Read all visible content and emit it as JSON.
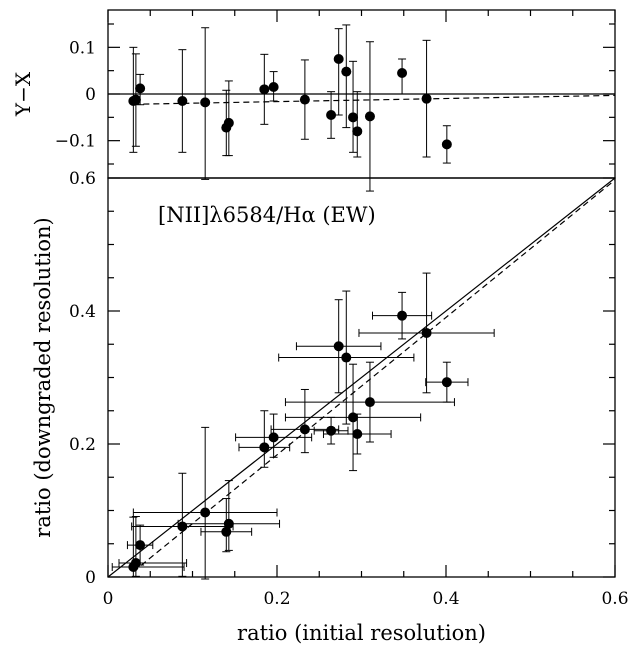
{
  "chart_data": [
    {
      "type": "scatter",
      "panel": "top",
      "ylabel": "Y−X",
      "xlim": [
        0,
        0.6
      ],
      "ylim": [
        -0.18,
        0.18
      ],
      "yticks": [
        "0.1",
        "0",
        "−0.1"
      ],
      "reference_line": {
        "type": "horizontal",
        "y": 0,
        "style": "solid"
      },
      "fit_line": {
        "style": "dashed",
        "points": [
          [
            0.03,
            -0.022
          ],
          [
            0.6,
            -0.003
          ]
        ]
      },
      "points": [
        {
          "x": 0.03,
          "y": -0.015,
          "y_err": [
            0.11,
            0.115
          ]
        },
        {
          "x": 0.033,
          "y": -0.012,
          "y_err": [
            0.1,
            0.098
          ]
        },
        {
          "x": 0.038,
          "y": 0.012,
          "y_err": [
            0.035,
            0.03
          ]
        },
        {
          "x": 0.088,
          "y": -0.015,
          "y_err": [
            0.11,
            0.11
          ]
        },
        {
          "x": 0.115,
          "y": -0.018,
          "y_err": [
            0.165,
            0.16
          ]
        },
        {
          "x": 0.14,
          "y": -0.072,
          "y_err": [
            0.06,
            0.08
          ]
        },
        {
          "x": 0.143,
          "y": -0.062,
          "y_err": [
            0.07,
            0.09
          ]
        },
        {
          "x": 0.185,
          "y": 0.01,
          "y_err": [
            0.075,
            0.075
          ]
        },
        {
          "x": 0.196,
          "y": 0.015,
          "y_err": [
            0.03,
            0.033
          ]
        },
        {
          "x": 0.233,
          "y": -0.012,
          "y_err": [
            0.085,
            0.085
          ]
        },
        {
          "x": 0.264,
          "y": -0.045,
          "y_err": [
            0.05,
            0.05
          ]
        },
        {
          "x": 0.273,
          "y": 0.075,
          "y_err": [
            0.12,
            0.065
          ]
        },
        {
          "x": 0.282,
          "y": 0.048,
          "y_err": [
            0.12,
            0.1
          ]
        },
        {
          "x": 0.29,
          "y": -0.05,
          "y_err": [
            0.075,
            0.12
          ]
        },
        {
          "x": 0.295,
          "y": -0.08,
          "y_err": [
            0.055,
            0.085
          ]
        },
        {
          "x": 0.31,
          "y": -0.048,
          "y_err": [
            0.16,
            0.16
          ]
        },
        {
          "x": 0.348,
          "y": 0.045,
          "y_err": [
            0.045,
            0.03
          ]
        },
        {
          "x": 0.377,
          "y": -0.01,
          "y_err": [
            0.125,
            0.125
          ]
        },
        {
          "x": 0.401,
          "y": -0.108,
          "y_err": [
            0.04,
            0.04
          ]
        }
      ]
    },
    {
      "type": "scatter",
      "panel": "bottom",
      "annotation": "[NII]λ6584/Hα (EW)",
      "xlabel": "ratio (initial resolution)",
      "ylabel": "ratio (downgraded resolution)",
      "xlim": [
        0,
        0.6
      ],
      "ylim": [
        0,
        0.6
      ],
      "xticks": [
        "0",
        "0.2",
        "0.4",
        "0.6"
      ],
      "yticks": [
        "0",
        "0.2",
        "0.4",
        "0.6"
      ],
      "reference_line": {
        "type": "one-to-one",
        "style": "solid",
        "points": [
          [
            0,
            0
          ],
          [
            0.6,
            0.6
          ]
        ]
      },
      "fit_line": {
        "style": "dashed",
        "points": [
          [
            0.03,
            0.008
          ],
          [
            0.6,
            0.597
          ]
        ]
      },
      "points": [
        {
          "x": 0.03,
          "y": 0.015,
          "x_err": [
            0.025,
            0.06
          ],
          "y_err": [
            0.015,
            0.075
          ]
        },
        {
          "x": 0.033,
          "y": 0.021,
          "x_err": [
            0.02,
            0.06
          ],
          "y_err": [
            0.02,
            0.07
          ]
        },
        {
          "x": 0.038,
          "y": 0.048,
          "x_err": [
            0.015,
            0.015
          ],
          "y_err": [
            0.03,
            0.03
          ]
        },
        {
          "x": 0.088,
          "y": 0.076,
          "x_err": [
            0.06,
            0.06
          ],
          "y_err": [
            0.075,
            0.08
          ]
        },
        {
          "x": 0.115,
          "y": 0.097,
          "x_err": [
            0.085,
            0.085
          ],
          "y_err": [
            0.1,
            0.128
          ]
        },
        {
          "x": 0.14,
          "y": 0.068,
          "x_err": [
            0.03,
            0.03
          ],
          "y_err": [
            0.03,
            0.05
          ]
        },
        {
          "x": 0.143,
          "y": 0.08,
          "x_err": [
            0.06,
            0.06
          ],
          "y_err": [
            0.04,
            0.065
          ]
        },
        {
          "x": 0.185,
          "y": 0.195,
          "x_err": [
            0.03,
            0.03
          ],
          "y_err": [
            0.03,
            0.055
          ]
        },
        {
          "x": 0.196,
          "y": 0.21,
          "x_err": [
            0.045,
            0.045
          ],
          "y_err": [
            0.03,
            0.035
          ]
        },
        {
          "x": 0.233,
          "y": 0.222,
          "x_err": [
            0.04,
            0.04
          ],
          "y_err": [
            0.035,
            0.06
          ]
        },
        {
          "x": 0.264,
          "y": 0.22,
          "x_err": [
            0.02,
            0.02
          ],
          "y_err": [
            0.02,
            0.02
          ]
        },
        {
          "x": 0.273,
          "y": 0.347,
          "x_err": [
            0.05,
            0.05
          ],
          "y_err": [
            0.07,
            0.07
          ]
        },
        {
          "x": 0.282,
          "y": 0.33,
          "x_err": [
            0.08,
            0.08
          ],
          "y_err": [
            0.1,
            0.1
          ]
        },
        {
          "x": 0.29,
          "y": 0.24,
          "x_err": [
            0.08,
            0.08
          ],
          "y_err": [
            0.08,
            0.08
          ]
        },
        {
          "x": 0.295,
          "y": 0.215,
          "x_err": [
            0.04,
            0.04
          ],
          "y_err": [
            0.03,
            0.03
          ]
        },
        {
          "x": 0.31,
          "y": 0.263,
          "x_err": [
            0.1,
            0.1
          ],
          "y_err": [
            0.06,
            0.06
          ]
        },
        {
          "x": 0.348,
          "y": 0.393,
          "x_err": [
            0.035,
            0.035
          ],
          "y_err": [
            0.035,
            0.035
          ]
        },
        {
          "x": 0.377,
          "y": 0.367,
          "x_err": [
            0.08,
            0.08
          ],
          "y_err": [
            0.09,
            0.09
          ]
        },
        {
          "x": 0.401,
          "y": 0.293,
          "x_err": [
            0.025,
            0.025
          ],
          "y_err": [
            0.03,
            0.03
          ]
        }
      ]
    }
  ]
}
